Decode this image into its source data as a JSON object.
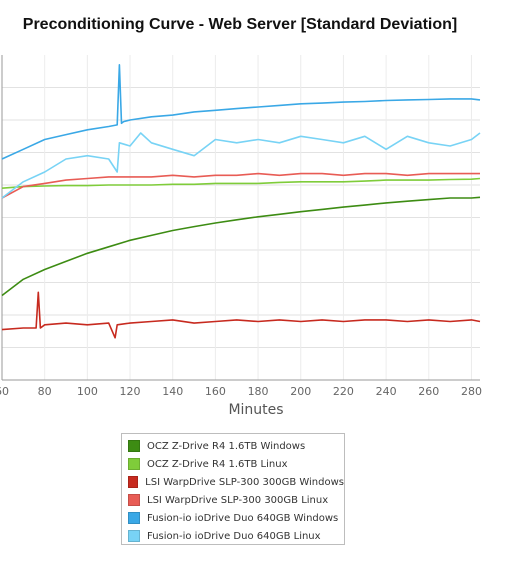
{
  "chart_data": {
    "type": "line",
    "title": "Preconditioning Curve - Web Server [Standard Deviation]",
    "xlabel": "Minutes",
    "ylabel": "",
    "xlim": [
      60,
      284
    ],
    "ylim": [
      0,
      10
    ],
    "x_ticks": [
      60,
      80,
      100,
      120,
      140,
      160,
      180,
      200,
      220,
      240,
      260,
      280
    ],
    "x_tick_labels": [
      "60",
      "80",
      "100",
      "120",
      "140",
      "160",
      "180",
      "200",
      "220",
      "240",
      "260",
      "280"
    ],
    "y_gridlines": [
      1,
      2,
      3,
      4,
      5,
      6,
      7,
      8,
      9
    ],
    "grid": true,
    "legend_position": "bottom",
    "series": [
      {
        "name": "OCZ Z-Drive R4 1.6TB Windows",
        "color": "#3d8c13",
        "x": [
          60,
          70,
          80,
          90,
          100,
          110,
          120,
          130,
          140,
          150,
          160,
          170,
          180,
          190,
          200,
          210,
          220,
          230,
          240,
          250,
          260,
          270,
          280,
          284
        ],
        "y": [
          2.6,
          3.1,
          3.4,
          3.65,
          3.9,
          4.1,
          4.3,
          4.45,
          4.6,
          4.72,
          4.83,
          4.93,
          5.02,
          5.1,
          5.18,
          5.25,
          5.32,
          5.38,
          5.45,
          5.5,
          5.55,
          5.6,
          5.6,
          5.62
        ]
      },
      {
        "name": "OCZ Z-Drive R4 1.6TB Linux",
        "color": "#7fcc3a",
        "x": [
          60,
          70,
          80,
          90,
          100,
          110,
          120,
          130,
          140,
          150,
          160,
          170,
          180,
          190,
          200,
          210,
          220,
          230,
          240,
          250,
          260,
          270,
          280,
          284
        ],
        "y": [
          5.9,
          5.95,
          5.97,
          5.98,
          5.98,
          6.0,
          6.0,
          6.0,
          6.02,
          6.02,
          6.05,
          6.05,
          6.05,
          6.08,
          6.1,
          6.1,
          6.1,
          6.12,
          6.15,
          6.15,
          6.15,
          6.17,
          6.18,
          6.2
        ]
      },
      {
        "name": "LSI WarpDrive SLP-300 300GB Windows",
        "color": "#c72a1f",
        "x": [
          60,
          70,
          76,
          77,
          78,
          80,
          90,
          100,
          110,
          113,
          114,
          120,
          130,
          140,
          150,
          160,
          170,
          180,
          190,
          200,
          210,
          220,
          230,
          240,
          250,
          260,
          270,
          280,
          284
        ],
        "y": [
          1.55,
          1.6,
          1.6,
          2.7,
          1.6,
          1.7,
          1.75,
          1.7,
          1.75,
          1.3,
          1.7,
          1.75,
          1.8,
          1.85,
          1.75,
          1.8,
          1.85,
          1.8,
          1.85,
          1.8,
          1.85,
          1.8,
          1.85,
          1.85,
          1.8,
          1.85,
          1.8,
          1.85,
          1.8
        ]
      },
      {
        "name": "LSI WarpDrive SLP-300 300GB Linux",
        "color": "#e85c55",
        "x": [
          60,
          70,
          80,
          90,
          100,
          110,
          120,
          130,
          140,
          150,
          160,
          170,
          180,
          190,
          200,
          210,
          220,
          230,
          240,
          250,
          260,
          270,
          280,
          284
        ],
        "y": [
          5.6,
          5.95,
          6.05,
          6.15,
          6.2,
          6.25,
          6.25,
          6.25,
          6.3,
          6.25,
          6.3,
          6.3,
          6.35,
          6.3,
          6.35,
          6.35,
          6.3,
          6.35,
          6.35,
          6.3,
          6.35,
          6.35,
          6.35,
          6.35
        ]
      },
      {
        "name": "Fusion-io ioDrive Duo 640GB Windows",
        "color": "#3aa8e6",
        "x": [
          60,
          70,
          80,
          90,
          100,
          110,
          114,
          115,
          116,
          117,
          120,
          130,
          140,
          150,
          160,
          170,
          180,
          190,
          200,
          210,
          220,
          230,
          240,
          250,
          260,
          270,
          280,
          284
        ],
        "y": [
          6.8,
          7.1,
          7.4,
          7.55,
          7.7,
          7.8,
          7.85,
          9.7,
          7.9,
          7.95,
          8.0,
          8.1,
          8.15,
          8.25,
          8.3,
          8.35,
          8.4,
          8.45,
          8.5,
          8.52,
          8.55,
          8.57,
          8.6,
          8.62,
          8.63,
          8.65,
          8.65,
          8.62
        ]
      },
      {
        "name": "Fusion-io ioDrive Duo 640GB Linux",
        "color": "#78d3f5",
        "x": [
          60,
          70,
          80,
          90,
          100,
          110,
          114,
          115,
          120,
          125,
          130,
          140,
          150,
          160,
          170,
          180,
          190,
          200,
          210,
          220,
          230,
          240,
          250,
          260,
          270,
          280,
          284
        ],
        "y": [
          5.6,
          6.1,
          6.4,
          6.8,
          6.9,
          6.8,
          6.4,
          7.3,
          7.2,
          7.6,
          7.3,
          7.1,
          6.9,
          7.4,
          7.3,
          7.4,
          7.3,
          7.5,
          7.4,
          7.3,
          7.5,
          7.1,
          7.5,
          7.3,
          7.2,
          7.4,
          7.6
        ]
      }
    ]
  }
}
